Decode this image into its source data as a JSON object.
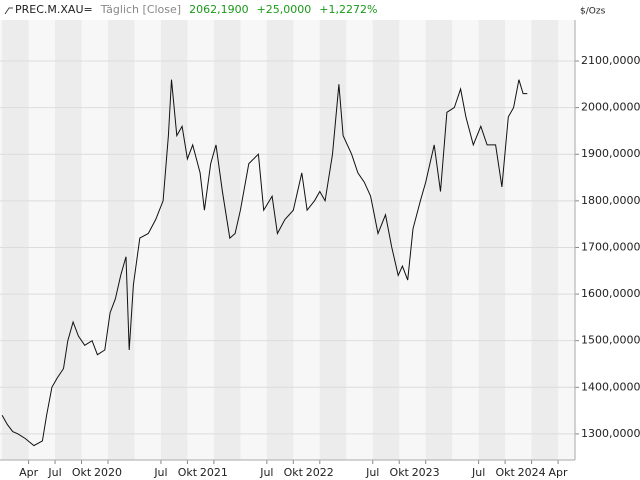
{
  "chart_data": {
    "type": "line",
    "symbol": "PREC.M.XAU=",
    "interval": "Täglich [Close]",
    "last": "2062,1900",
    "change": "+25,0000",
    "change_pct": "+1,2272%",
    "unit": "$/Ozs",
    "color": "#111111",
    "grid": true,
    "x": [
      2019.0,
      2019.05,
      2019.1,
      2019.15,
      2019.22,
      2019.3,
      2019.38,
      2019.42,
      2019.47,
      2019.52,
      2019.58,
      2019.62,
      2019.67,
      2019.72,
      2019.78,
      2019.85,
      2019.9,
      2019.97,
      2020.02,
      2020.07,
      2020.12,
      2020.17,
      2020.2,
      2020.24,
      2020.3,
      2020.38,
      2020.45,
      2020.52,
      2020.57,
      2020.6,
      2020.65,
      2020.7,
      2020.75,
      2020.8,
      2020.87,
      2020.91,
      2020.97,
      2021.02,
      2021.08,
      2021.15,
      2021.2,
      2021.25,
      2021.33,
      2021.42,
      2021.47,
      2021.55,
      2021.6,
      2021.67,
      2021.75,
      2021.83,
      2021.88,
      2021.95,
      2022.0,
      2022.05,
      2022.12,
      2022.18,
      2022.22,
      2022.3,
      2022.36,
      2022.42,
      2022.48,
      2022.55,
      2022.62,
      2022.68,
      2022.74,
      2022.78,
      2022.83,
      2022.88,
      2022.95,
      2023.0,
      2023.08,
      2023.14,
      2023.2,
      2023.27,
      2023.33,
      2023.38,
      2023.45,
      2023.52,
      2023.58,
      2023.66,
      2023.72,
      2023.78,
      2023.83,
      2023.88,
      2023.92,
      2023.96
    ],
    "values": [
      1340,
      1320,
      1305,
      1300,
      1290,
      1275,
      1285,
      1340,
      1400,
      1420,
      1440,
      1500,
      1540,
      1510,
      1490,
      1500,
      1470,
      1480,
      1560,
      1590,
      1640,
      1680,
      1480,
      1620,
      1720,
      1730,
      1760,
      1800,
      1940,
      2060,
      1940,
      1960,
      1890,
      1920,
      1860,
      1780,
      1880,
      1920,
      1820,
      1720,
      1730,
      1780,
      1880,
      1900,
      1780,
      1810,
      1730,
      1760,
      1780,
      1860,
      1780,
      1800,
      1820,
      1800,
      1900,
      2050,
      1940,
      1900,
      1860,
      1840,
      1810,
      1730,
      1770,
      1700,
      1640,
      1660,
      1630,
      1740,
      1800,
      1840,
      1920,
      1820,
      1990,
      2000,
      2040,
      1980,
      1920,
      1960,
      1920,
      1920,
      1830,
      1980,
      2000,
      2060,
      2030,
      2030
    ],
    "xlim": [
      2018.98,
      2024.41
    ],
    "ylim": [
      1244,
      2188
    ],
    "xticks": [
      {
        "value": 2019.25,
        "label": "Apr"
      },
      {
        "value": 2019.5,
        "label": "Jul"
      },
      {
        "value": 2019.75,
        "label": "Okt"
      },
      {
        "value": 2020,
        "label": "2020"
      },
      {
        "value": 2020.5,
        "label": "Jul"
      },
      {
        "value": 2020.75,
        "label": "Okt"
      },
      {
        "value": 2021,
        "label": "2021"
      },
      {
        "value": 2021.5,
        "label": "Jul"
      },
      {
        "value": 2021.75,
        "label": "Okt"
      },
      {
        "value": 2022,
        "label": "2022"
      },
      {
        "value": 2022.5,
        "label": "Jul"
      },
      {
        "value": 2022.75,
        "label": "Okt"
      },
      {
        "value": 2023,
        "label": "2023"
      },
      {
        "value": 2023.5,
        "label": "Jul"
      },
      {
        "value": 2023.75,
        "label": "Okt"
      },
      {
        "value": 2024,
        "label": "2024"
      },
      {
        "value": 2024.25,
        "label": "Apr"
      }
    ],
    "yticks": [
      {
        "value": 1300,
        "label": "1300,0000"
      },
      {
        "value": 1400,
        "label": "1400,0000"
      },
      {
        "value": 1500,
        "label": "1500,0000"
      },
      {
        "value": 1600,
        "label": "1600,0000"
      },
      {
        "value": 1700,
        "label": "1700,0000"
      },
      {
        "value": 1800,
        "label": "1800,0000"
      },
      {
        "value": 1900,
        "label": "1900,0000"
      },
      {
        "value": 2000,
        "label": "2000,0000"
      },
      {
        "value": 2100,
        "label": "2100,0000"
      }
    ]
  }
}
